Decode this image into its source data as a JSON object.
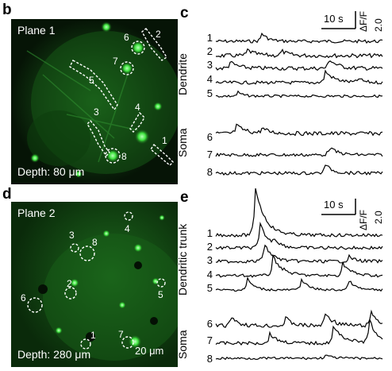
{
  "panels": {
    "b": {
      "letter": "b",
      "plane": "Plane 1",
      "depth": "Depth: 80 μm",
      "rois": [
        {
          "n": "1"
        },
        {
          "n": "2"
        },
        {
          "n": "3"
        },
        {
          "n": "4"
        },
        {
          "n": "5"
        },
        {
          "n": "6"
        },
        {
          "n": "7"
        },
        {
          "n": "8"
        }
      ]
    },
    "c": {
      "letter": "c",
      "scale_time": "10 s",
      "scale_df": "ΔF/F",
      "scale_val": "2.0",
      "group_dendrite": "Dendrite",
      "group_soma": "Soma",
      "dendrite_nums": [
        "1",
        "2",
        "3",
        "4",
        "5"
      ],
      "soma_nums": [
        "6",
        "7",
        "8"
      ]
    },
    "d": {
      "letter": "d",
      "plane": "Plane 2",
      "depth": "Depth: 280 μm",
      "scalebar": "20 μm",
      "rois": [
        {
          "n": "1"
        },
        {
          "n": "2"
        },
        {
          "n": "3"
        },
        {
          "n": "4"
        },
        {
          "n": "5"
        },
        {
          "n": "6"
        },
        {
          "n": "7"
        },
        {
          "n": "8"
        }
      ]
    },
    "e": {
      "letter": "e",
      "scale_time": "10 s",
      "scale_df": "ΔF/F",
      "scale_val": "2.0",
      "group_trunk": "Dendritic trunk",
      "group_soma": "Soma",
      "trunk_nums": [
        "1",
        "2",
        "3",
        "4",
        "5"
      ],
      "soma_nums": [
        "6",
        "7",
        "8"
      ]
    }
  },
  "colors": {
    "fluorescence": "#2fd62f",
    "background": "#061406",
    "roi_outline": "#ffffff",
    "trace": "#000000"
  }
}
